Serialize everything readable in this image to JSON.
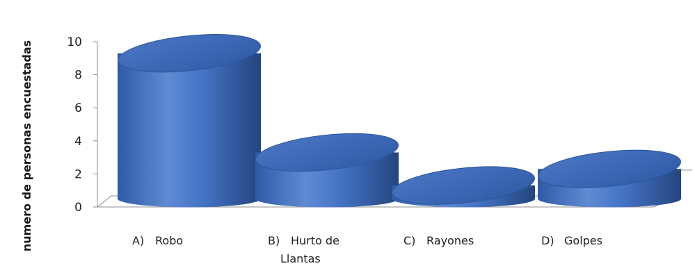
{
  "chart_data": {
    "type": "bar",
    "style": "3d-cylinder",
    "title": "",
    "xlabel": "",
    "ylabel": "numero de personas encuestadas",
    "categories": [
      {
        "marker": "A)",
        "lines": [
          "Robo"
        ]
      },
      {
        "marker": "B)",
        "lines": [
          "Hurto de",
          "Llantas"
        ]
      },
      {
        "marker": "C)",
        "lines": [
          "Rayones"
        ]
      },
      {
        "marker": "D)",
        "lines": [
          "Golpes"
        ]
      }
    ],
    "values": [
      9.3,
      3.3,
      1.3,
      2.3
    ],
    "ylim": [
      0,
      10
    ],
    "yticks": [
      "0",
      "2",
      "4",
      "6",
      "8",
      "10"
    ],
    "grid": false,
    "legend": "none",
    "colors": {
      "bar_base": "#4472c4",
      "bar_light": "#6e95d6",
      "bar_dark": "#23457f",
      "bar_top": "#3b64b0",
      "axis": "#8c8c8c"
    }
  }
}
